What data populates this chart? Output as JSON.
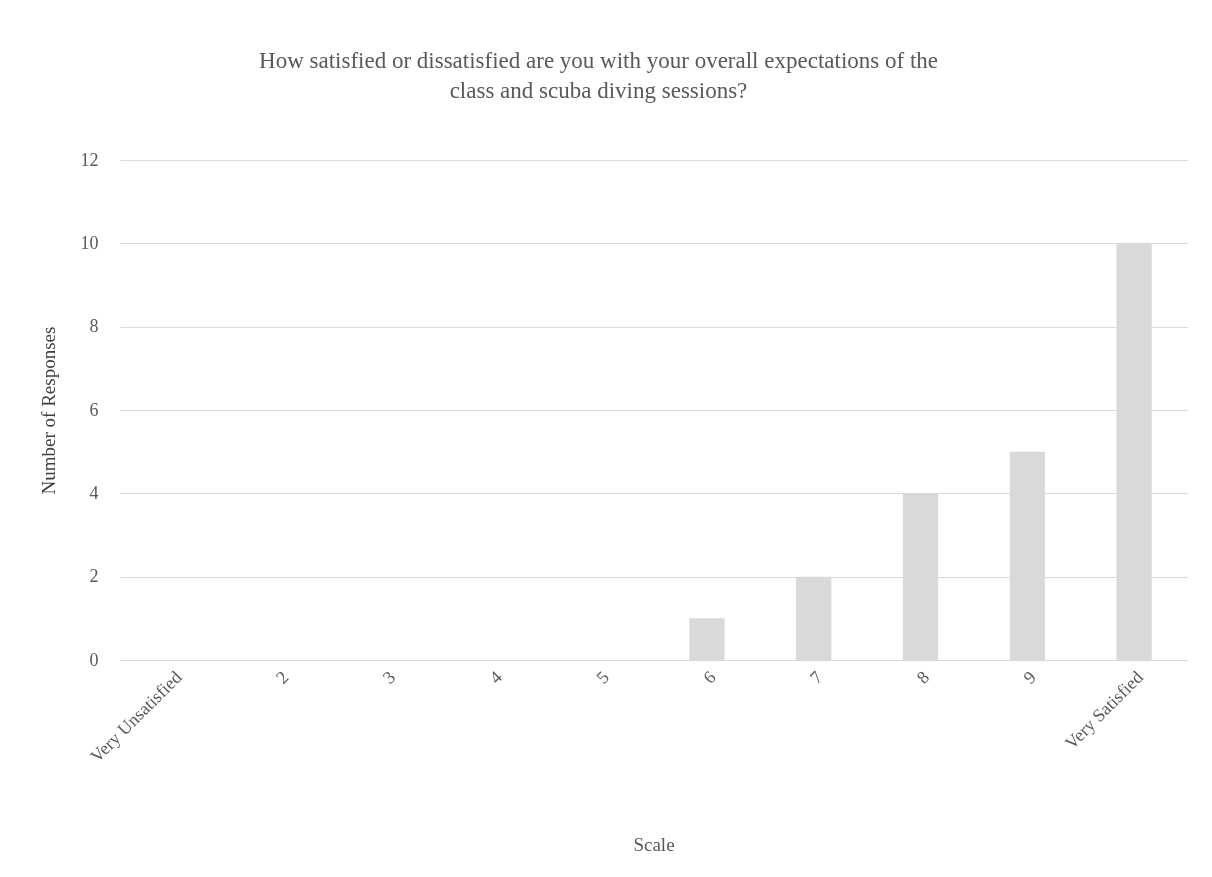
{
  "chart_data": {
    "type": "bar",
    "title": "How satisfied or dissatisfied are you with your overall expectations of the class and scuba diving sessions?",
    "xlabel": "Scale",
    "ylabel": "Number of Responses",
    "categories": [
      "Very Unsatisfied",
      "2",
      "3",
      "4",
      "5",
      "6",
      "7",
      "8",
      "9",
      "Very Satisfied"
    ],
    "values": [
      0,
      0,
      0,
      0,
      0,
      1,
      2,
      4,
      5,
      10
    ],
    "color": "#d9d9d9",
    "ylim": [
      0,
      12
    ],
    "yticks": [
      0,
      2,
      4,
      6,
      8,
      10,
      12
    ],
    "grid": "y"
  }
}
